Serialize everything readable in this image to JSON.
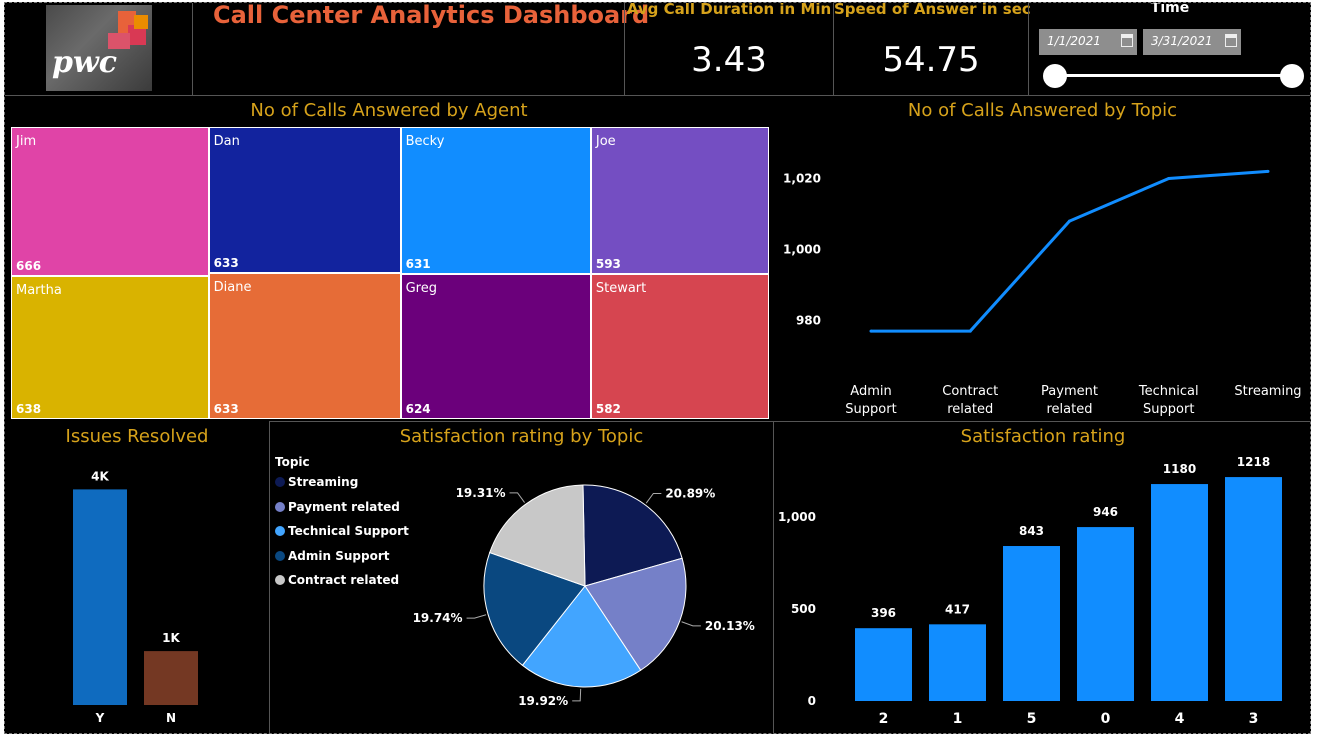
{
  "header": {
    "logo_text": "pwc",
    "title": "Call Center Analytics Dashboard"
  },
  "kpis": [
    {
      "label": "Avg Call Duration in Min",
      "value": "3.43"
    },
    {
      "label": "Speed of Answer in sec",
      "value": "54.75"
    }
  ],
  "time_filter": {
    "label": "Time",
    "start_date": "1/1/2021",
    "end_date": "3/31/2021",
    "range_position": [
      0,
      1
    ]
  },
  "colors": {
    "title_orange": "#e8623a",
    "panel_gold": "#d6a21b",
    "accent_blue": "#118dff"
  },
  "agent_treemap": {
    "title": "No of Calls Answered by Agent",
    "agents": [
      {
        "name": "Jim",
        "value": "666",
        "color": "#e044a7"
      },
      {
        "name": "Martha",
        "value": "638",
        "color": "#d9b300"
      },
      {
        "name": "Dan",
        "value": "633",
        "color": "#12239e"
      },
      {
        "name": "Diane",
        "value": "633",
        "color": "#e66c37"
      },
      {
        "name": "Becky",
        "value": "631",
        "color": "#118dff"
      },
      {
        "name": "Greg",
        "value": "624",
        "color": "#6b007b"
      },
      {
        "name": "Joe",
        "value": "593",
        "color": "#744ec2"
      },
      {
        "name": "Stewart",
        "value": "582",
        "color": "#d64550"
      }
    ]
  },
  "topic_line": {
    "title": "No of Calls Answered by Topic",
    "chart_data": {
      "type": "line",
      "categories": [
        "Admin Support",
        "Contract related",
        "Payment related",
        "Technical Support",
        "Streaming"
      ],
      "values": [
        977,
        977,
        1008,
        1020,
        1022
      ],
      "ylim": [
        968,
        1030
      ],
      "yticks": [
        "980",
        "1,000",
        "1,020"
      ],
      "ytick_values": [
        980,
        1000,
        1020
      ],
      "color": "#118dff"
    }
  },
  "issues": {
    "title": "Issues Resolved",
    "chart_data": {
      "type": "bar",
      "categories": [
        "Y",
        "N"
      ],
      "values": [
        4000,
        1000
      ],
      "labels": [
        "4K",
        "1K"
      ],
      "colors": [
        "#0f6bbf",
        "#743823"
      ],
      "ylim": [
        0,
        4100
      ]
    }
  },
  "satisfaction_topic": {
    "title": "Satisfaction rating by Topic",
    "legend_title": "Topic",
    "chart_data": {
      "type": "pie",
      "slices": [
        {
          "name": "Streaming",
          "pct": 20.89,
          "label": "20.89%",
          "color": "#0d1a54"
        },
        {
          "name": "Payment related",
          "pct": 20.13,
          "label": "20.13%",
          "color": "#7580c8"
        },
        {
          "name": "Technical Support",
          "pct": 19.92,
          "label": "19.92%",
          "color": "#42a5ff"
        },
        {
          "name": "Admin Support",
          "pct": 19.74,
          "label": "19.74%",
          "color": "#0a4880"
        },
        {
          "name": "Contract related",
          "pct": 19.31,
          "label": "19.31%",
          "color": "#c8c8c8"
        }
      ]
    }
  },
  "satisfaction_rating": {
    "title": "Satisfaction rating",
    "chart_data": {
      "type": "bar",
      "categories": [
        "2",
        "1",
        "5",
        "0",
        "4",
        "3"
      ],
      "values": [
        396,
        417,
        843,
        946,
        1180,
        1218
      ],
      "labels": [
        "396",
        "417",
        "843",
        "946",
        "1180",
        "1218"
      ],
      "ylim": [
        0,
        1300
      ],
      "yticks": [
        "0",
        "500",
        "1,000"
      ],
      "ytick_values": [
        0,
        500,
        1000
      ],
      "color": "#118dff"
    }
  }
}
